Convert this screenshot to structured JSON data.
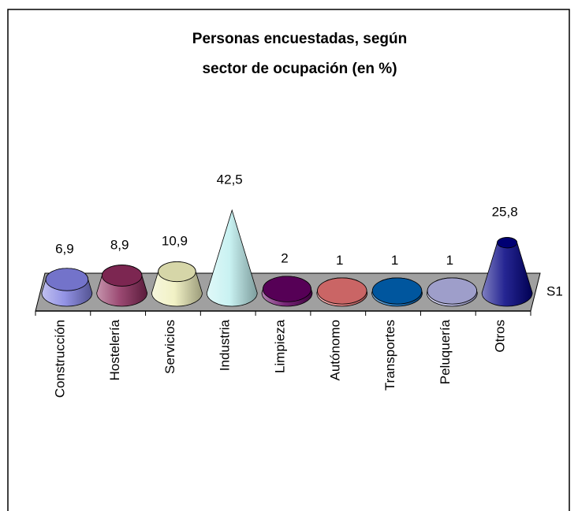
{
  "chart_data": {
    "type": "cone",
    "title": "Personas encuestadas, según sector de ocupación (en %)",
    "title_lines": [
      "Personas encuestadas, según",
      "sector de ocupación (en %)"
    ],
    "categories": [
      "Construcción",
      "Hostelería",
      "Servicios",
      "Industria",
      "Limpieza",
      "Autónomo",
      "Transportes",
      "Peluquería",
      "Otros"
    ],
    "series": [
      {
        "name": "S1",
        "values": [
          6.9,
          8.9,
          10.9,
          42.5,
          2,
          1,
          1,
          1,
          25.8
        ],
        "value_labels": [
          "6,9",
          "8,9",
          "10,9",
          "42,5",
          "2",
          "1",
          "1",
          "1",
          "25,8"
        ],
        "colors": [
          "#8080e0",
          "#8a2a5a",
          "#eeeebb",
          "#c0f0f0",
          "#600060",
          "#e07070",
          "#0060b0",
          "#b0b0e0",
          "#000080"
        ]
      }
    ]
  }
}
